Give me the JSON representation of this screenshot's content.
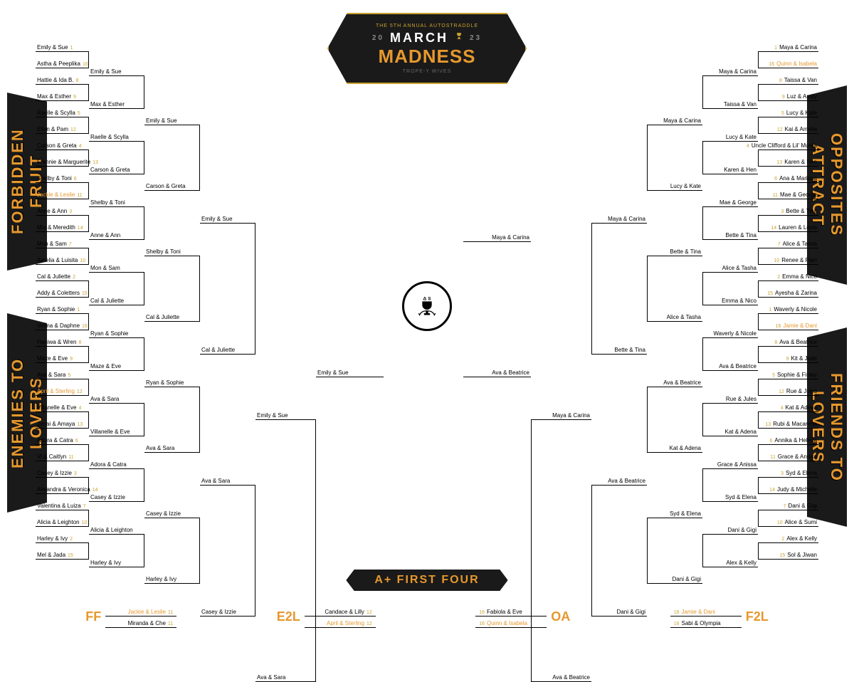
{
  "header": {
    "tagline": "THE 5TH ANNUAL AUTOSTRADDLE",
    "march": "MARCH",
    "year_left": "20",
    "year_right": "23",
    "madness": "MADNESS",
    "subtitle": "TROPE-Y WIVES"
  },
  "regions": {
    "left_top": "FORBIDDEN FRUIT",
    "left_bottom": "ENEMIES TO LOVERS",
    "right_top": "OPPOSITES ATTRACT",
    "right_bottom": "FRIENDS TO LOVERS"
  },
  "colors": {
    "accent": "#e6982e",
    "gold": "#c9a22f",
    "dark": "#1a1a1a",
    "text": "#000000",
    "bg": "#ffffff"
  },
  "left_r1": [
    {
      "name": "Emily & Sue",
      "seed": "1"
    },
    {
      "name": "Astha & Peeplika",
      "seed": "16"
    },
    {
      "name": "Hattie & Ida B.",
      "seed": "8"
    },
    {
      "name": "Max & Esther",
      "seed": "9"
    },
    {
      "name": "Raelle & Scylla",
      "seed": "5"
    },
    {
      "name": "Ellen & Pam",
      "seed": "12"
    },
    {
      "name": "Carson & Greta",
      "seed": "4"
    },
    {
      "name": "Frannie & Marguerite",
      "seed": "13"
    },
    {
      "name": "Shelby & Toni",
      "seed": "6"
    },
    {
      "name": "Jackie & Leslie",
      "seed": "11",
      "hl": true
    },
    {
      "name": "Anne & Ann",
      "seed": "3"
    },
    {
      "name": "Mia & Meredith",
      "seed": "14"
    },
    {
      "name": "Mon & Sam",
      "seed": "7"
    },
    {
      "name": "Amelia & Luisita",
      "seed": "10"
    },
    {
      "name": "Cal & Juliette",
      "seed": "2"
    },
    {
      "name": "Addy & Coletters",
      "seed": "15"
    },
    {
      "name": "Ryan & Sophie",
      "seed": "1"
    },
    {
      "name": "Velma & Daphne",
      "seed": "16"
    },
    {
      "name": "Haniwa & Wren",
      "seed": "8"
    },
    {
      "name": "Maze & Eve",
      "seed": "9"
    },
    {
      "name": "Ava & Sara",
      "seed": "5"
    },
    {
      "name": "April & Sterling",
      "seed": "12",
      "hl": true
    },
    {
      "name": "Villanelle & Eve",
      "seed": "4"
    },
    {
      "name": "Janai & Amaya",
      "seed": "13"
    },
    {
      "name": "Adora & Catra",
      "seed": "6"
    },
    {
      "name": "Vi & Caitlyn",
      "seed": "11"
    },
    {
      "name": "Casey & Izzie",
      "seed": "3"
    },
    {
      "name": "Alejandra & Veronica",
      "seed": "14"
    },
    {
      "name": "Valentina & Luiza",
      "seed": "7"
    },
    {
      "name": "Alicia & Leighton",
      "seed": "10"
    },
    {
      "name": "Harley & Ivy",
      "seed": "2"
    },
    {
      "name": "Mel & Jada",
      "seed": "15"
    }
  ],
  "left_r2": [
    "Emily & Sue",
    "Max & Esther",
    "Raelle & Scylla",
    "Carson & Greta",
    "Shelby & Toni",
    "Anne & Ann",
    "Mon & Sam",
    "Cal & Juliette",
    "Ryan & Sophie",
    "Maze & Eve",
    "Ava & Sara",
    "Villanelle & Eve",
    "Adora & Catra",
    "Casey & Izzie",
    "Alicia & Leighton",
    "Harley & Ivy"
  ],
  "left_r3": [
    "Emily & Sue",
    "Carson & Greta",
    "Shelby & Toni",
    "Cal & Juliette",
    "Ryan & Sophie",
    "Ava & Sara",
    "Casey & Izzie",
    "Harley & Ivy"
  ],
  "left_r4": [
    "Emily & Sue",
    "Cal & Juliette",
    "Ava & Sara",
    "Casey & Izzie"
  ],
  "left_r5": [
    "Emily & Sue",
    "Ava & Sara"
  ],
  "left_r6": [
    "Emily & Sue"
  ],
  "right_r1": [
    {
      "name": "Maya & Carina",
      "seed": "1"
    },
    {
      "name": "Quinn & Isabela",
      "seed": "16",
      "hl": true
    },
    {
      "name": "Taissa & Van",
      "seed": "8"
    },
    {
      "name": "Luz & Amity",
      "seed": "9"
    },
    {
      "name": "Lucy & Kate",
      "seed": "5"
    },
    {
      "name": "Kai & Amelia",
      "seed": "12"
    },
    {
      "name": "Uncle Clifford & Lil' Murda",
      "seed": "4"
    },
    {
      "name": "Karen & Hen",
      "seed": "13"
    },
    {
      "name": "Ana & Mariana",
      "seed": "6"
    },
    {
      "name": "Mae & George",
      "seed": "11"
    },
    {
      "name": "Bette & Tina",
      "seed": "3"
    },
    {
      "name": "Lauren & Leyla",
      "seed": "14"
    },
    {
      "name": "Alice & Tasha",
      "seed": "7"
    },
    {
      "name": "Renee & Pam",
      "seed": "10"
    },
    {
      "name": "Emma & Nico",
      "seed": "2"
    },
    {
      "name": "Ayesha & Zarina",
      "seed": "15"
    },
    {
      "name": "Waverly & Nicole",
      "seed": "1"
    },
    {
      "name": "Jamie & Dani",
      "seed": "16",
      "hl": true
    },
    {
      "name": "Ava & Beatrice",
      "seed": "8"
    },
    {
      "name": "Kit & Jade",
      "seed": "9"
    },
    {
      "name": "Sophie & Finley",
      "seed": "5"
    },
    {
      "name": "Rue & Jules",
      "seed": "12"
    },
    {
      "name": "Kat & Adena",
      "seed": "4"
    },
    {
      "name": "Rubi & Macarena",
      "seed": "13"
    },
    {
      "name": "Annika & Helena",
      "seed": "6"
    },
    {
      "name": "Grace & Anissa",
      "seed": "11"
    },
    {
      "name": "Syd & Elena",
      "seed": "3"
    },
    {
      "name": "Judy & Michelle",
      "seed": "14"
    },
    {
      "name": "Dani & Gigi",
      "seed": "7"
    },
    {
      "name": "Alice & Sumi",
      "seed": "10"
    },
    {
      "name": "Alex & Kelly",
      "seed": "2"
    },
    {
      "name": "Sol & Jiwan",
      "seed": "15"
    }
  ],
  "right_r2": [
    "Maya & Carina",
    "Taissa & Van",
    "Lucy & Kate",
    "Karen & Hen",
    "Mae & George",
    "Bette & Tina",
    "Alice & Tasha",
    "Emma & Nico",
    "Waverly & Nicole",
    "Ava & Beatrice",
    "Rue & Jules",
    "Kat & Adena",
    "Grace & Anissa",
    "Syd & Elena",
    "Dani & Gigi",
    "Alex & Kelly"
  ],
  "right_r3": [
    "Maya & Carina",
    "Lucy & Kate",
    "Bette & Tina",
    "Alice & Tasha",
    "Ava & Beatrice",
    "Kat & Adena",
    "Syd & Elena",
    "Dani & Gigi"
  ],
  "right_r4": [
    "Maya & Carina",
    "Bette & Tina",
    "Ava & Beatrice",
    "Dani & Gigi"
  ],
  "right_r5": [
    "Maya & Carina",
    "Ava & Beatrice"
  ],
  "right_r6": [
    "Maya & Carina",
    "Ava & Beatrice"
  ],
  "first_four": {
    "banner": "A+ FIRST FOUR",
    "groups": [
      {
        "code": "FF",
        "top": {
          "name": "Jackie & Leslie",
          "seed": "11",
          "hl": true
        },
        "bot": {
          "name": "Miranda & Che",
          "seed": "11"
        }
      },
      {
        "code": "E2L",
        "top": {
          "name": "Candace & Lilly",
          "seed": "12"
        },
        "bot": {
          "name": "April & Sterling",
          "seed": "12",
          "hl": true
        }
      },
      {
        "code": "OA",
        "top": {
          "name": "Fabiola & Eve",
          "seed": "16"
        },
        "bot": {
          "name": "Quinn & Isabela",
          "seed": "16",
          "hl": true
        }
      },
      {
        "code": "F2L",
        "top": {
          "name": "Jamie & Dani",
          "seed": "16",
          "hl": true
        },
        "bot": {
          "name": "Sabi & Olympia",
          "seed": "16"
        }
      }
    ]
  }
}
